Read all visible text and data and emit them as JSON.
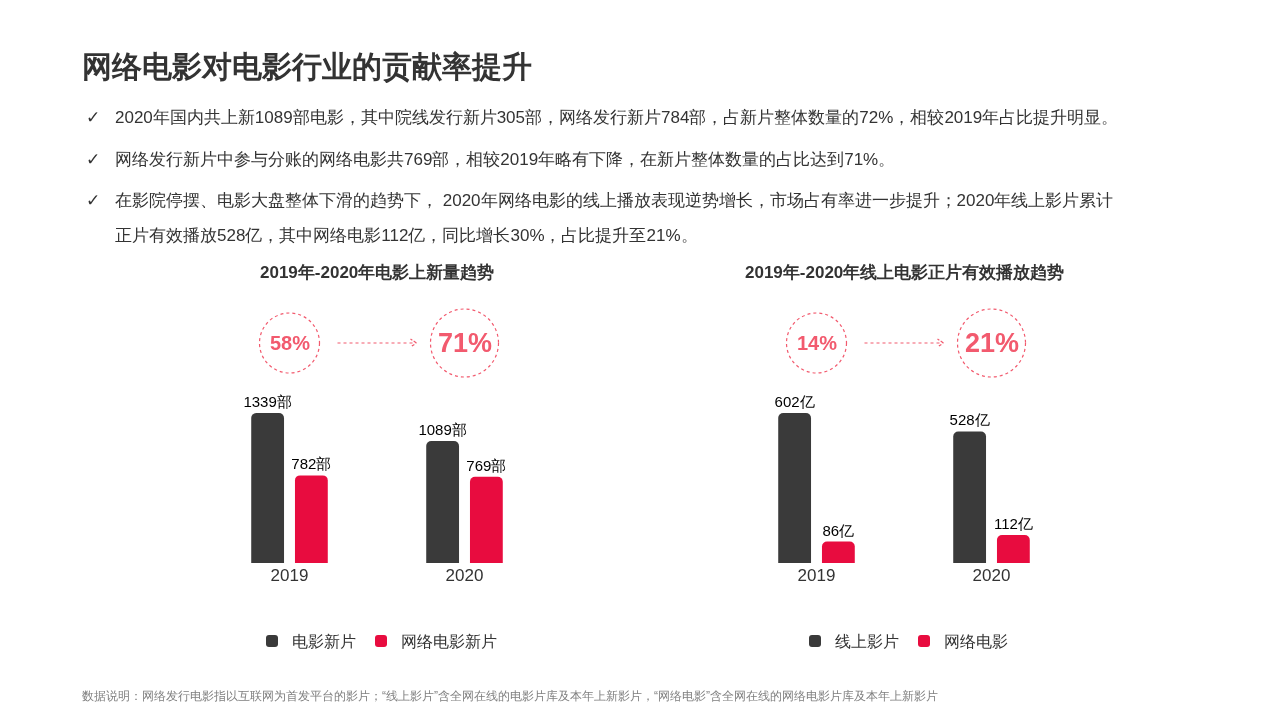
{
  "chart_data": [
    {
      "type": "other",
      "title": "网络电影对电影行业的贡献率提升",
      "annotations": [
        "✓",
        "2020年国内共上新1089部电影，其中院线发行新片305部，网络发行新片784部，占新片整体数量的72%，相较2019年占比提升明显。",
        "✓",
        "网络发行新片中参与分账的网络电影共769部，相较2019年略有下降，在新片整体数量的占比达到71%。",
        "✓",
        "在影院停摆、电影大盘整体下滑的趋势下， 2020年网络电影的线上播放表现逆势增长，市场占有率进一步提升；2020年线上影片累计",
        "正片有效播放528亿，其中网络电影112亿，同比增长30%，占比提升至21%。",
        "数据说明：网络发行电影指以互联网为首发平台的影片；“线上影片”含全网在线的电影片库及本年上新影片，“网络电影”含全网在线的网络电影片库及本年上新影片"
      ]
    },
    {
      "type": "bar",
      "title": "2019年-2020年电影上新量趋势",
      "categories": [
        "2019",
        "2020"
      ],
      "legend": "bottom",
      "annotations": [
        "58%",
        "71%"
      ],
      "series": [
        {
          "name": "电影新片",
          "color": "#3a3a3a",
          "values": [
            1339,
            1089
          ],
          "value_labels": [
            "1339部",
            "1089部"
          ]
        },
        {
          "name": "网络电影新片",
          "color": "#e80c3f",
          "values": [
            782,
            769
          ],
          "value_labels": [
            "782部",
            "769部"
          ]
        }
      ]
    },
    {
      "type": "bar",
      "title": "2019年-2020年线上电影正片有效播放趋势",
      "categories": [
        "2019",
        "2020"
      ],
      "legend": "bottom",
      "annotations": [
        "14%",
        "21%"
      ],
      "series": [
        {
          "name": "线上影片",
          "color": "#3a3a3a",
          "values": [
            602,
            528
          ],
          "value_labels": [
            "602亿",
            "528亿"
          ]
        },
        {
          "name": "网络电影",
          "color": "#e80c3f",
          "values": [
            86,
            112
          ],
          "value_labels": [
            "86亿",
            "112亿"
          ]
        }
      ]
    }
  ]
}
